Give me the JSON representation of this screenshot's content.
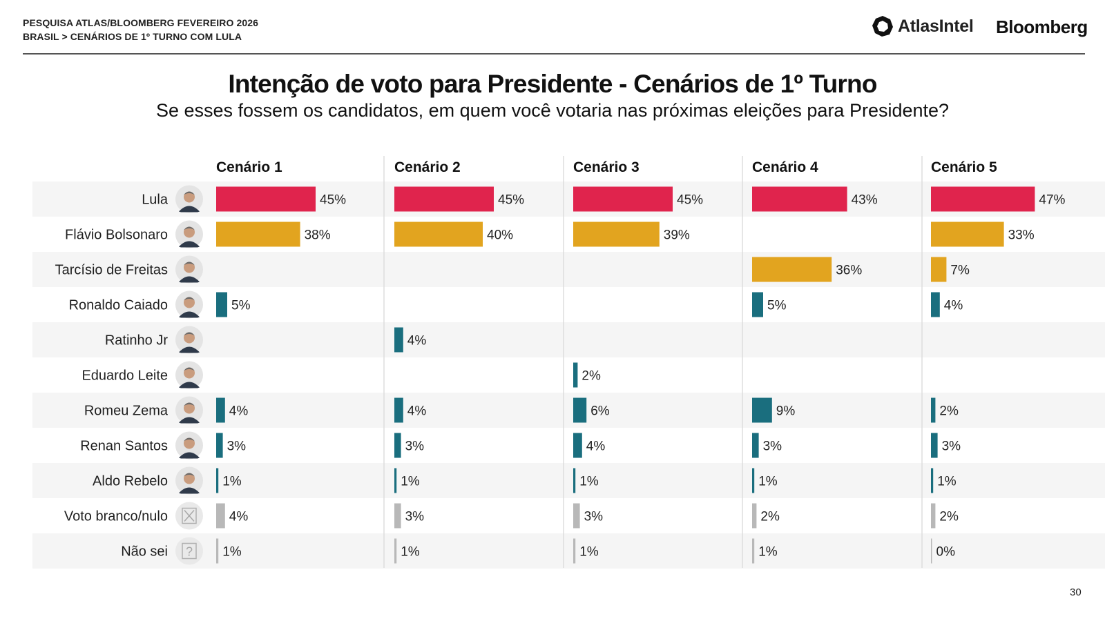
{
  "header": {
    "line1": "PESQUISA ATLAS/BLOOMBERG FEVEREIRO 2026",
    "line2": "BRASIL > CENÁRIOS DE 1º TURNO COM LULA",
    "brand_atlas": "AtlasIntel",
    "brand_bloomberg": "Bloomberg"
  },
  "page_number": "30",
  "colors": {
    "lula": "#e0244d",
    "main_opponent": "#e2a41f",
    "other": "#1a6e7e",
    "blank": "#b8b8b8",
    "row_band": "#f5f5f5",
    "divider": "#dddddd"
  },
  "chart_data": {
    "type": "bar",
    "orientation": "horizontal",
    "title": "Intenção de voto para Presidente - Cenários de 1º Turno",
    "subtitle": "Se esses fossem os candidatos, em quem você votaria nas próximas eleições para Presidente?",
    "unit": "%",
    "categories": [
      "Lula",
      "Flávio Bolsonaro",
      "Tarcísio de Freitas",
      "Ronaldo Caiado",
      "Ratinho Jr",
      "Eduardo Leite",
      "Romeu Zema",
      "Renan Santos",
      "Aldo Rebelo",
      "Voto branco/nulo",
      "Não sei"
    ],
    "category_kind": [
      "lula",
      "main",
      "main",
      "other",
      "other",
      "other",
      "other",
      "other",
      "other",
      "blank",
      "blank"
    ],
    "avatar_icons": [
      "lula-portrait-icon",
      "flavio-portrait-icon",
      "tarcisio-portrait-icon",
      "caiado-portrait-icon",
      "ratinho-portrait-icon",
      "leite-portrait-icon",
      "zema-portrait-icon",
      "renan-portrait-icon",
      "aldo-portrait-icon",
      "ballot-x-icon",
      "question-mark-icon"
    ],
    "series": [
      {
        "name": "Cenário 1",
        "values": [
          45,
          38,
          null,
          5,
          null,
          null,
          4,
          3,
          1,
          4,
          1
        ]
      },
      {
        "name": "Cenário 2",
        "values": [
          45,
          40,
          null,
          null,
          4,
          null,
          4,
          3,
          1,
          3,
          1
        ]
      },
      {
        "name": "Cenário 3",
        "values": [
          45,
          39,
          null,
          null,
          null,
          2,
          6,
          4,
          1,
          3,
          1
        ]
      },
      {
        "name": "Cenário 4",
        "values": [
          43,
          null,
          36,
          5,
          null,
          null,
          9,
          3,
          1,
          2,
          1
        ]
      },
      {
        "name": "Cenário 5",
        "values": [
          47,
          33,
          7,
          4,
          null,
          null,
          2,
          3,
          1,
          2,
          0
        ]
      }
    ],
    "xlim": [
      0,
      50
    ]
  }
}
